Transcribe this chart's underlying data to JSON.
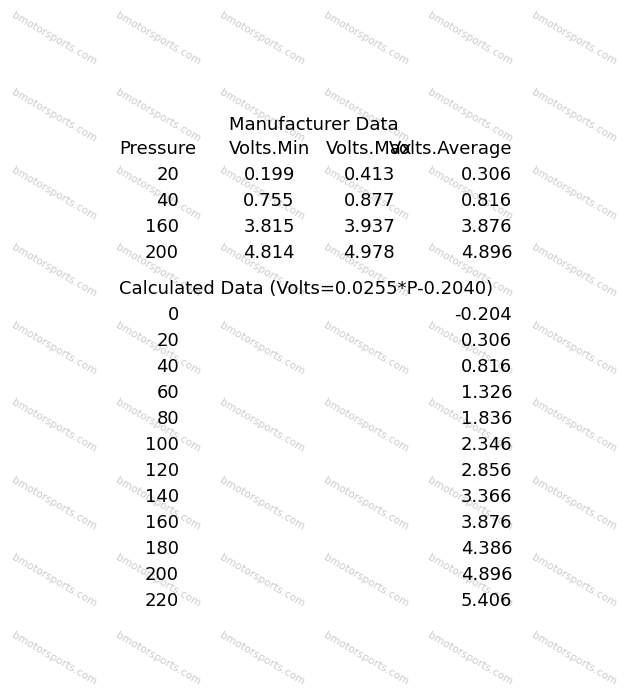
{
  "title1": "Manufacturer Data",
  "mfr_headers": [
    "Pressure",
    "Volts.Min",
    "Volts.Max",
    "Volts.Average"
  ],
  "mfr_rows": [
    [
      20,
      0.199,
      0.413,
      0.306
    ],
    [
      40,
      0.755,
      0.877,
      0.816
    ],
    [
      160,
      3.815,
      3.937,
      3.876
    ],
    [
      200,
      4.814,
      4.978,
      4.896
    ]
  ],
  "title2": "Calculated Data (Volts=0.0255*P-0.2040)",
  "calc_rows": [
    [
      0,
      -0.204
    ],
    [
      20,
      0.306
    ],
    [
      40,
      0.816
    ],
    [
      60,
      1.326
    ],
    [
      80,
      1.836
    ],
    [
      100,
      2.346
    ],
    [
      120,
      2.856
    ],
    [
      140,
      3.366
    ],
    [
      160,
      3.876
    ],
    [
      180,
      4.386
    ],
    [
      200,
      4.896
    ],
    [
      220,
      5.406
    ]
  ],
  "bg_color": "#ffffff",
  "text_color": "#000000",
  "watermark_text": "bmotorsports.com",
  "watermark_color": "#cccccc",
  "font_size": 13,
  "title_font_size": 13
}
